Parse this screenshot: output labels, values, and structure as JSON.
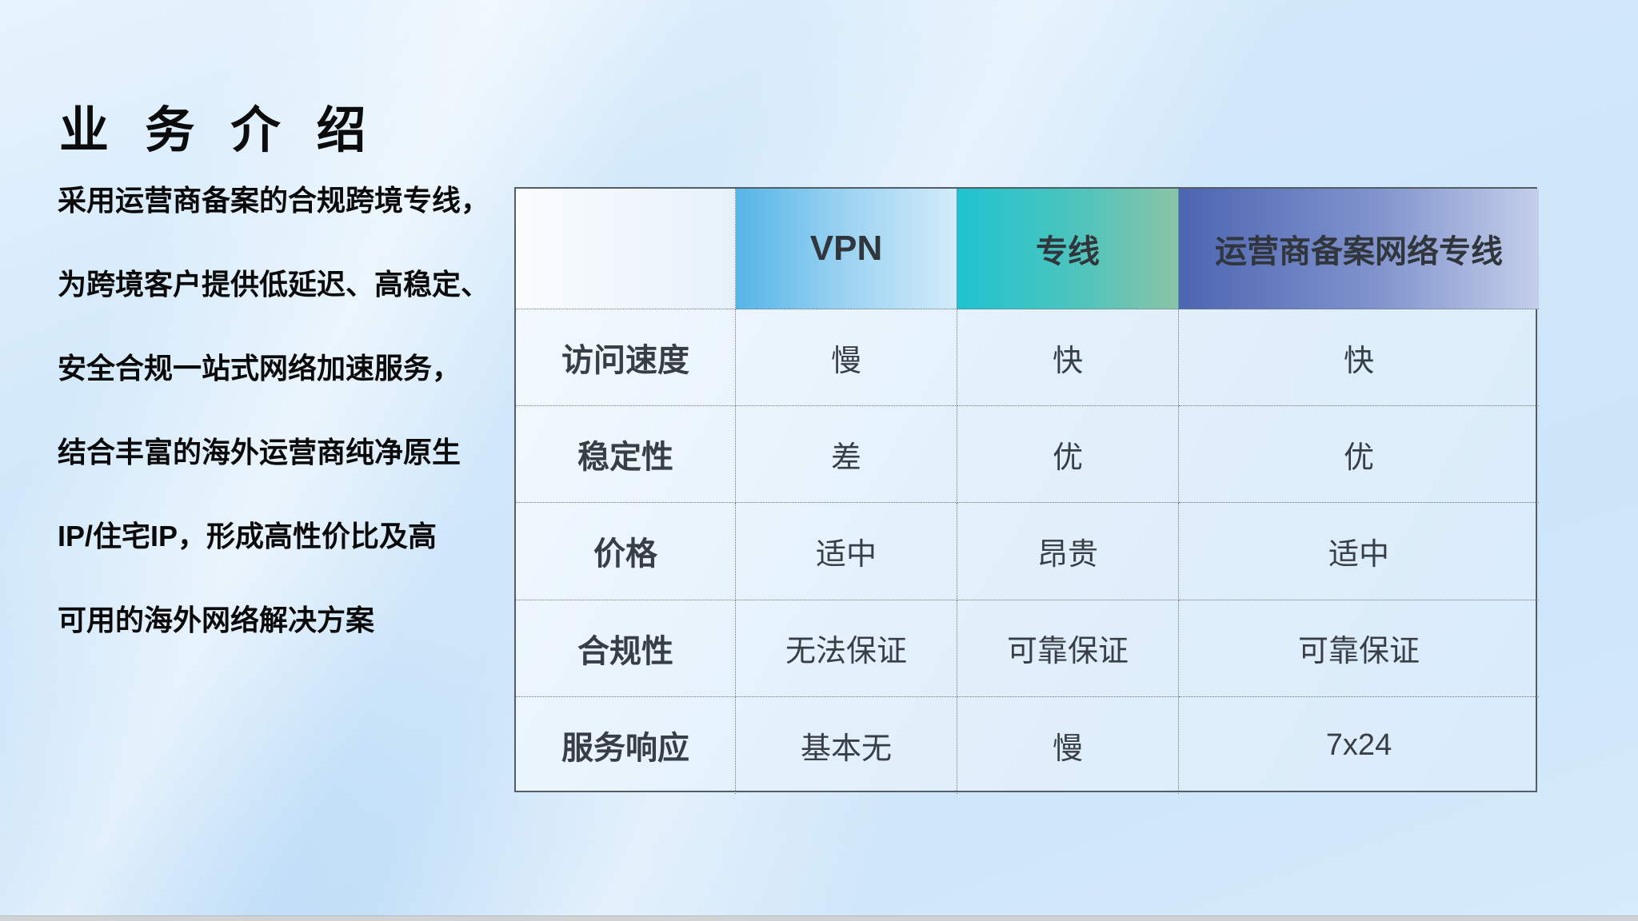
{
  "page": {
    "title": "业 务 介 绍"
  },
  "intro": {
    "lines": [
      "采用运营商备案的合规跨境专线，",
      "为跨境客户提供低延迟、高稳定、",
      "安全合规一站式网络加速服务，",
      "结合丰富的海外运营商纯净原生",
      "IP/住宅IP，形成高性价比及高",
      "可用的海外网络解决方案"
    ]
  },
  "comparison_table": {
    "columns": [
      "",
      "VPN",
      "专线",
      "运营商备案网络专线"
    ],
    "rows": [
      {
        "label": "访问速度",
        "values": [
          "慢",
          "快",
          "快"
        ]
      },
      {
        "label": "稳定性",
        "values": [
          "差",
          "优",
          "优"
        ]
      },
      {
        "label": "价格",
        "values": [
          "适中",
          "昂贵",
          "适中"
        ]
      },
      {
        "label": "合规性",
        "values": [
          "无法保证",
          "可靠保证",
          "可靠保证"
        ]
      },
      {
        "label": "服务响应",
        "values": [
          "基本无",
          "慢",
          "7x24"
        ]
      }
    ],
    "header_gradient_colors": {
      "vpn_start": "#55b5e8",
      "vpn_end": "#d2ebfa",
      "dedicated_line_start": "#1fc3d0",
      "dedicated_line_end": "#8ac4a7",
      "carrier_line_start": "#4c65b2",
      "carrier_line_end": "#c4cfeb"
    },
    "background_color": "#cde5f9",
    "text_color": "#383e45"
  }
}
